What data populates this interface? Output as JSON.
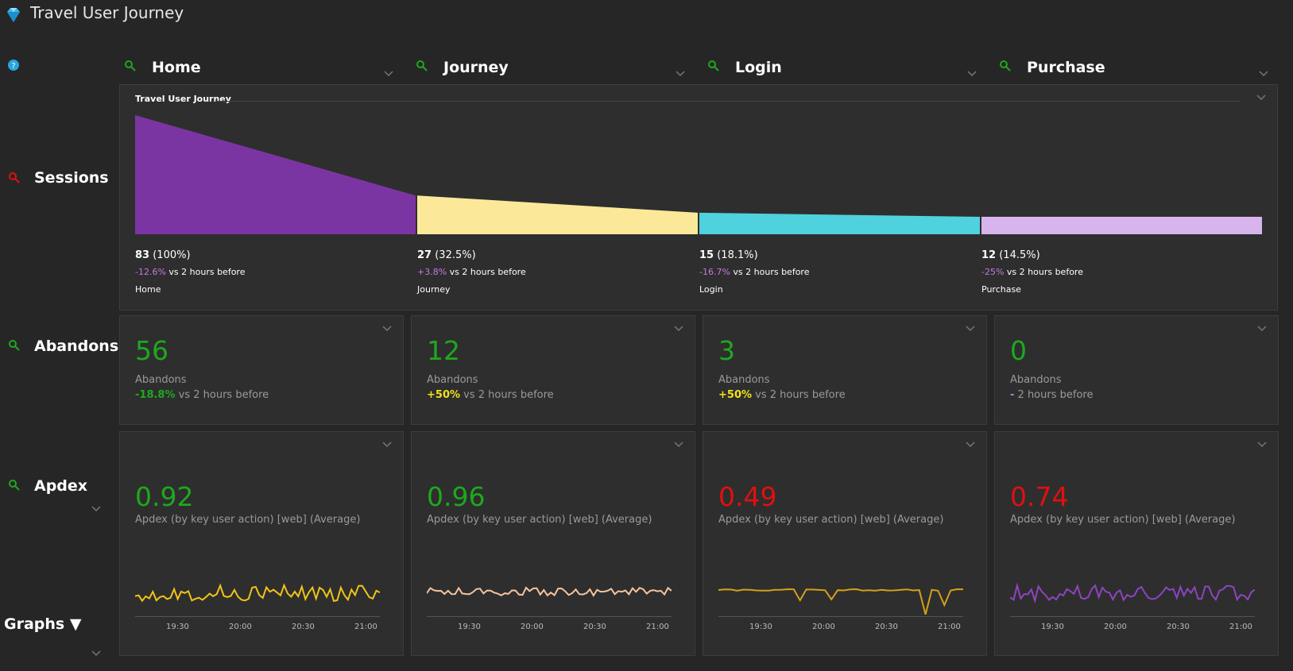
{
  "app": {
    "title": "Travel User Journey",
    "logo_icon": "diamond-icon"
  },
  "row_labels": {
    "sessions": "Sessions",
    "abandons": "Abandons",
    "apdex": "Apdex",
    "graphs": "Graphs ▼"
  },
  "columns": [
    "Home",
    "Journey",
    "Login",
    "Purchase"
  ],
  "funnel": {
    "title": "Travel User Journey",
    "steps": [
      {
        "count": "83",
        "pct": "(100%)",
        "delta": "-12.6%",
        "delta_suffix": " vs 2 hours before",
        "name": "Home",
        "color": "#7b35a3",
        "value": 83
      },
      {
        "count": "27",
        "pct": "(32.5%)",
        "delta": "+3.8%",
        "delta_suffix": " vs 2 hours before",
        "name": "Journey",
        "color": "#fbe999",
        "value": 27
      },
      {
        "count": "15",
        "pct": "(18.1%)",
        "delta": "-16.7%",
        "delta_suffix": " vs 2 hours before",
        "name": "Login",
        "color": "#4fd1de",
        "value": 15
      },
      {
        "count": "12",
        "pct": "(14.5%)",
        "delta": "-25%",
        "delta_suffix": " vs 2 hours before",
        "name": "Purchase",
        "color": "#d8b4ec",
        "value": 12
      }
    ]
  },
  "abandons": [
    {
      "value": "56",
      "label": "Abandons",
      "delta": "-18.8%",
      "suffix": " vs 2 hours before",
      "delta_color": "#1ea81e"
    },
    {
      "value": "12",
      "label": "Abandons",
      "delta": "+50%",
      "suffix": " vs 2 hours before",
      "delta_color": "#f0e21b"
    },
    {
      "value": "3",
      "label": "Abandons",
      "delta": "+50%",
      "suffix": " vs 2 hours before",
      "delta_color": "#f0e21b"
    },
    {
      "value": "0",
      "label": "Abandons",
      "delta": "-",
      "suffix": " 2 hours before",
      "delta_color": "#c47ae0"
    }
  ],
  "apdex": [
    {
      "value": "0.92",
      "label": "Apdex (by key user action) [web] (Average)",
      "color": "#1ea81e",
      "line_color": "#f0c419"
    },
    {
      "value": "0.96",
      "label": "Apdex (by key user action) [web] (Average)",
      "color": "#1ea81e",
      "line_color": "#f5c4a0"
    },
    {
      "value": "0.49",
      "label": "Apdex (by key user action) [web] (Average)",
      "color": "#e01010",
      "line_color": "#d4a017"
    },
    {
      "value": "0.74",
      "label": "Apdex (by key user action) [web] (Average)",
      "color": "#e01010",
      "line_color": "#8e44c0"
    }
  ],
  "time_ticks": [
    "19:30",
    "20:00",
    "20:30",
    "21:00"
  ],
  "colors": {
    "abandons_value": "#1ea81e",
    "zoom_green": "#1ea81e",
    "zoom_red": "#e01010"
  }
}
